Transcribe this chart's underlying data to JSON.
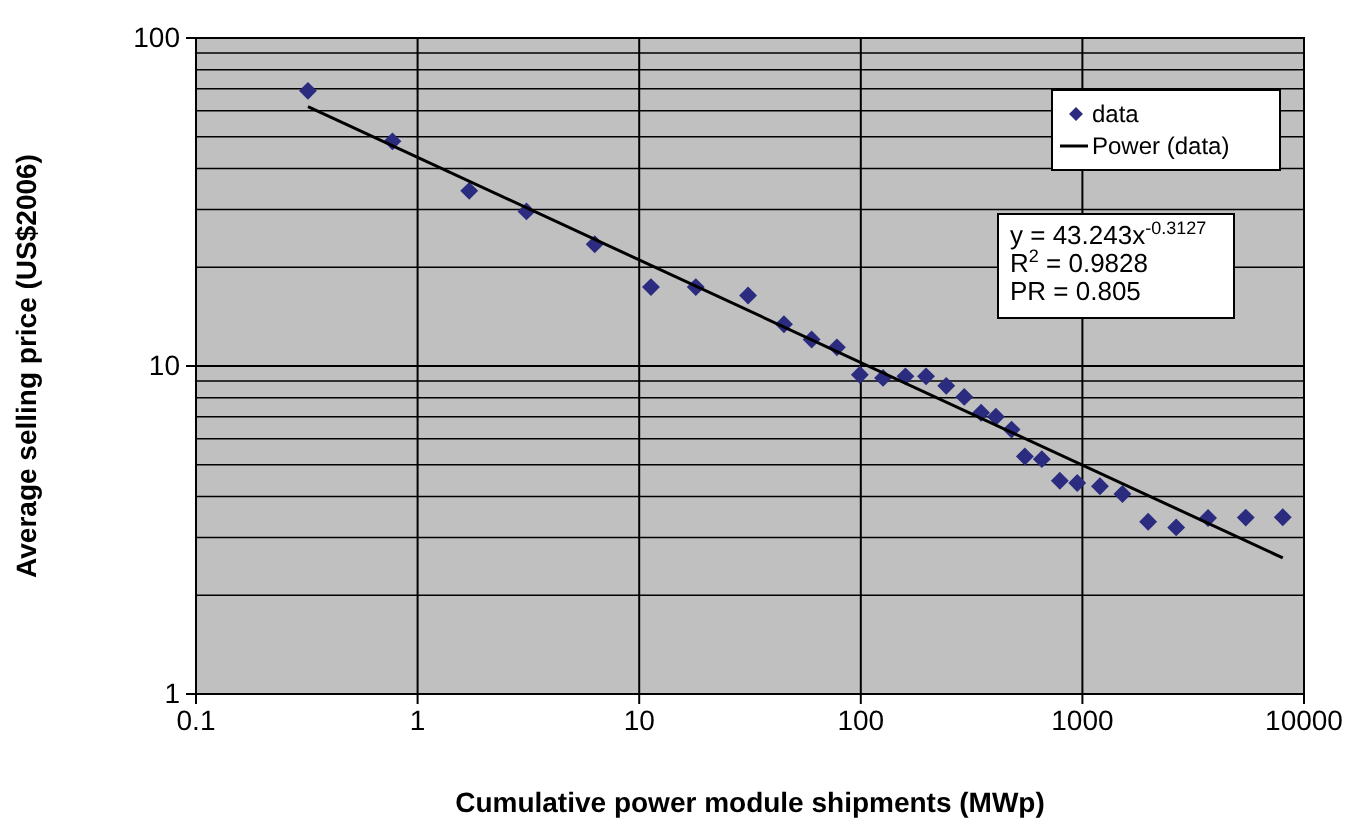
{
  "chart_data": {
    "type": "scatter",
    "xlabel": "Cumulative power module shipments (MWp)",
    "ylabel": "Average selling price (US$2006)",
    "log": "xy",
    "grid": true,
    "legend": "top right",
    "xlim": [
      0.1,
      10000
    ],
    "xticks": [
      0.1,
      1,
      10,
      100,
      1000,
      10000
    ],
    "ylim": [
      1,
      100
    ],
    "yticks": [
      1,
      10,
      100
    ],
    "series": [
      {
        "name": "data",
        "marker": "diamond",
        "color": "#2b2b7f",
        "x": [
          0.32,
          0.77,
          1.71,
          3.1,
          6.3,
          11.3,
          18,
          31,
          45,
          60,
          78,
          99,
          126,
          159,
          197,
          243,
          293,
          349,
          407,
          479,
          550,
          656,
          791,
          948,
          1200,
          1516,
          1980,
          2650,
          3690,
          5460,
          8020
        ],
        "values": [
          69,
          48.4,
          34.2,
          29.6,
          23.5,
          17.4,
          17.4,
          16.4,
          13.4,
          12.05,
          11.4,
          9.4,
          9.2,
          9.3,
          9.3,
          8.7,
          8.05,
          7.2,
          7.0,
          6.4,
          5.3,
          5.2,
          4.47,
          4.4,
          4.3,
          4.07,
          3.35,
          3.22,
          3.44,
          3.45,
          3.46
        ]
      },
      {
        "name": "Power (data)",
        "type": "line",
        "color": "#000000",
        "marker": "none",
        "x": [
          0.32,
          8020
        ],
        "values": [
          61.8,
          2.6
        ]
      }
    ],
    "annotations": [
      "y = 43.243x$^{-0.3127}$",
      "R$^{2}$ = 0.9828",
      "PR = 0.805"
    ]
  }
}
